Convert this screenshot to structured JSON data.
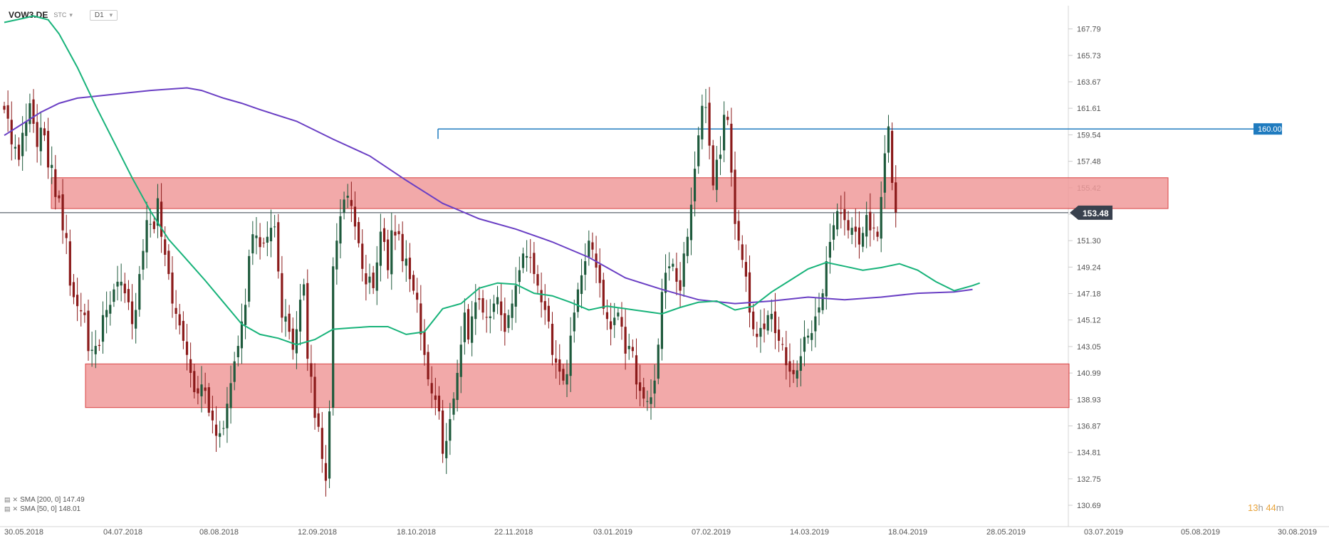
{
  "toolbar": {
    "symbol": "VOW3.DE",
    "subsymbol": "STC",
    "timeframe": "D1"
  },
  "countdown": {
    "hours": "13",
    "h_unit": "h",
    "minutes": "44",
    "m_unit": "m"
  },
  "indicators": [
    {
      "label": "SMA [200, 0] 147.49",
      "color": "#6a3fc4"
    },
    {
      "label": "SMA [50, 0] 148.01",
      "color": "#18b37a"
    }
  ],
  "colors": {
    "bull": "#1e5a3c",
    "bear": "#8b1a1a",
    "zone": "#f09a9a",
    "zone_border": "#d94444",
    "level": "#1f7bbf",
    "price": "#39414e",
    "sma200": "#6a3fc4",
    "sma50": "#18b37a"
  },
  "chart_data": {
    "type": "candlestick",
    "x_labels": [
      "30.05.2018",
      "04.07.2018",
      "08.08.2018",
      "12.09.2018",
      "18.10.2018",
      "22.11.2018",
      "03.01.2019",
      "07.02.2019",
      "14.03.2019",
      "18.04.2019",
      "28.05.2019",
      "03.07.2019",
      "05.08.2019",
      "30.08.2019"
    ],
    "y_ticks": [
      "167.79",
      "165.73",
      "163.67",
      "161.61",
      "159.54",
      "157.48",
      "155.42",
      "153.36",
      "151.30",
      "149.24",
      "147.18",
      "145.12",
      "143.05",
      "140.99",
      "138.93",
      "136.87",
      "134.81",
      "132.75",
      "130.69"
    ],
    "ylim": [
      130.69,
      169.6
    ],
    "current_price": "153.48",
    "resistance_level": "160.00",
    "zones": [
      {
        "name": "upper-zone",
        "low": 153.8,
        "high": 156.2
      },
      {
        "name": "lower-zone",
        "low": 138.3,
        "high": 141.7
      }
    ],
    "close": [
      161.5,
      160.8,
      158.8,
      158.6,
      157.6,
      159.7,
      160.6,
      162.0,
      160.4,
      158.6,
      160.1,
      159.5,
      157.0,
      157.2,
      154.7,
      154.6,
      152.1,
      151.5,
      147.8,
      146.9,
      146.2,
      145.8,
      145.5,
      142.7,
      142.8,
      143.1,
      143.1,
      145.5,
      145.9,
      146.3,
      147.5,
      148.1,
      148.1,
      147.2,
      146.5,
      144.8,
      145.9,
      148.7,
      150.5,
      152.9,
      152.6,
      152.2,
      154.6,
      151.6,
      150.2,
      148.7,
      146.4,
      145.6,
      144.7,
      143.5,
      142.4,
      141.0,
      139.5,
      139.4,
      140.1,
      139.6,
      137.9,
      137.3,
      136.1,
      136.3,
      136.7,
      138.6,
      140.2,
      141.9,
      143.1,
      145.0,
      146.3,
      150.1,
      151.8,
      151.7,
      150.8,
      151.1,
      151.6,
      152.3,
      152.4,
      148.9,
      145.3,
      145.4,
      144.2,
      142.8,
      144.4,
      146.7,
      147.9,
      142.1,
      140.7,
      137.5,
      136.8,
      134.3,
      132.6,
      138.0,
      149.3,
      151.3,
      153.2,
      154.5,
      154.8,
      154.0,
      152.4,
      151.1,
      149.1,
      147.9,
      148.5,
      147.6,
      149.6,
      152.0,
      151.2,
      149.0,
      152.1,
      151.7,
      151.8,
      149.7,
      149.9,
      148.3,
      147.4,
      146.7,
      144.0,
      142.4,
      140.5,
      139.4,
      138.9,
      138.0,
      134.7,
      135.7,
      137.4,
      139.0,
      141.0,
      143.2,
      145.7,
      143.6,
      145.4,
      146.5,
      146.7,
      145.7,
      145.3,
      145.4,
      146.4,
      146.9,
      145.5,
      144.2,
      145.5,
      146.4,
      147.8,
      149.0,
      150.3,
      150.1,
      150.0,
      148.7,
      147.8,
      146.5,
      145.9,
      145.0,
      142.4,
      141.8,
      141.1,
      140.4,
      140.9,
      143.9,
      145.7,
      147.5,
      148.6,
      149.7,
      151.3,
      150.6,
      149.2,
      148.0,
      146.0,
      145.2,
      144.4,
      145.3,
      145.7,
      144.6,
      142.5,
      143.1,
      142.7,
      140.1,
      139.6,
      139.0,
      138.8,
      139.1,
      140.4,
      143.2,
      147.3,
      148.8,
      149.3,
      149.5,
      148.1,
      147.4,
      150.3,
      151.6,
      154.1,
      156.9,
      159.5,
      161.8,
      161.7,
      158.7,
      155.6,
      157.6,
      158.0,
      161.1,
      160.7,
      156.6,
      152.6,
      151.3,
      149.8,
      148.5,
      145.7,
      144.4,
      143.8,
      144.5,
      144.4,
      145.5,
      145.6,
      144.1,
      143.5,
      143.2,
      141.6,
      141.1,
      140.9,
      141.2,
      142.3,
      143.8,
      143.9,
      144.1,
      145.4,
      146.1,
      147.2,
      149.7,
      151.2,
      152.5,
      153.6,
      153.4,
      152.9,
      152.1,
      152.3,
      152.0,
      151.0,
      151.9,
      153.3,
      152.1,
      152.3,
      151.6,
      154.7,
      158.1,
      160.2,
      155.8,
      153.5
    ],
    "sma200": {
      "name": "SMA [200, 0] 147.49",
      "points": [
        [
          0,
          159.5
        ],
        [
          5,
          160.4
        ],
        [
          10,
          161.3
        ],
        [
          15,
          162.0
        ],
        [
          20,
          162.4
        ],
        [
          30,
          162.7
        ],
        [
          40,
          163.0
        ],
        [
          50,
          163.2
        ],
        [
          54,
          163.0
        ],
        [
          60,
          162.4
        ],
        [
          65,
          162.0
        ],
        [
          70,
          161.5
        ],
        [
          80,
          160.6
        ],
        [
          90,
          159.2
        ],
        [
          100,
          157.9
        ],
        [
          110,
          156.0
        ],
        [
          120,
          154.2
        ],
        [
          130,
          153.0
        ],
        [
          140,
          152.2
        ],
        [
          150,
          151.2
        ],
        [
          160,
          150.0
        ],
        [
          170,
          148.4
        ],
        [
          180,
          147.5
        ],
        [
          190,
          146.7
        ],
        [
          200,
          146.4
        ],
        [
          210,
          146.6
        ],
        [
          220,
          146.9
        ],
        [
          230,
          146.7
        ],
        [
          240,
          146.9
        ],
        [
          250,
          147.2
        ],
        [
          260,
          147.3
        ],
        [
          265,
          147.5
        ]
      ]
    },
    "sma50": {
      "name": "SMA [50, 0] 148.01",
      "points": [
        [
          0,
          168.3
        ],
        [
          5,
          168.6
        ],
        [
          8,
          168.8
        ],
        [
          12,
          168.5
        ],
        [
          15,
          167.4
        ],
        [
          20,
          164.8
        ],
        [
          25,
          161.8
        ],
        [
          30,
          159.0
        ],
        [
          35,
          156.2
        ],
        [
          40,
          153.6
        ],
        [
          45,
          151.4
        ],
        [
          50,
          149.8
        ],
        [
          55,
          148.2
        ],
        [
          60,
          146.5
        ],
        [
          65,
          144.8
        ],
        [
          70,
          144.0
        ],
        [
          75,
          143.7
        ],
        [
          80,
          143.2
        ],
        [
          85,
          143.6
        ],
        [
          90,
          144.4
        ],
        [
          95,
          144.5
        ],
        [
          100,
          144.6
        ],
        [
          105,
          144.6
        ],
        [
          110,
          144.0
        ],
        [
          115,
          144.2
        ],
        [
          120,
          146.0
        ],
        [
          125,
          146.4
        ],
        [
          130,
          147.6
        ],
        [
          135,
          148.0
        ],
        [
          140,
          147.9
        ],
        [
          145,
          147.2
        ],
        [
          150,
          147.0
        ],
        [
          155,
          146.5
        ],
        [
          160,
          145.9
        ],
        [
          165,
          146.2
        ],
        [
          170,
          146.0
        ],
        [
          175,
          145.8
        ],
        [
          180,
          145.6
        ],
        [
          185,
          146.1
        ],
        [
          190,
          146.5
        ],
        [
          195,
          146.6
        ],
        [
          200,
          145.9
        ],
        [
          205,
          146.2
        ],
        [
          210,
          147.3
        ],
        [
          215,
          148.2
        ],
        [
          220,
          149.1
        ],
        [
          225,
          149.6
        ],
        [
          230,
          149.3
        ],
        [
          235,
          149.0
        ],
        [
          240,
          149.2
        ],
        [
          245,
          149.5
        ],
        [
          250,
          149.0
        ],
        [
          255,
          148.1
        ],
        [
          260,
          147.4
        ],
        [
          265,
          147.8
        ],
        [
          267,
          148.0
        ]
      ]
    }
  }
}
